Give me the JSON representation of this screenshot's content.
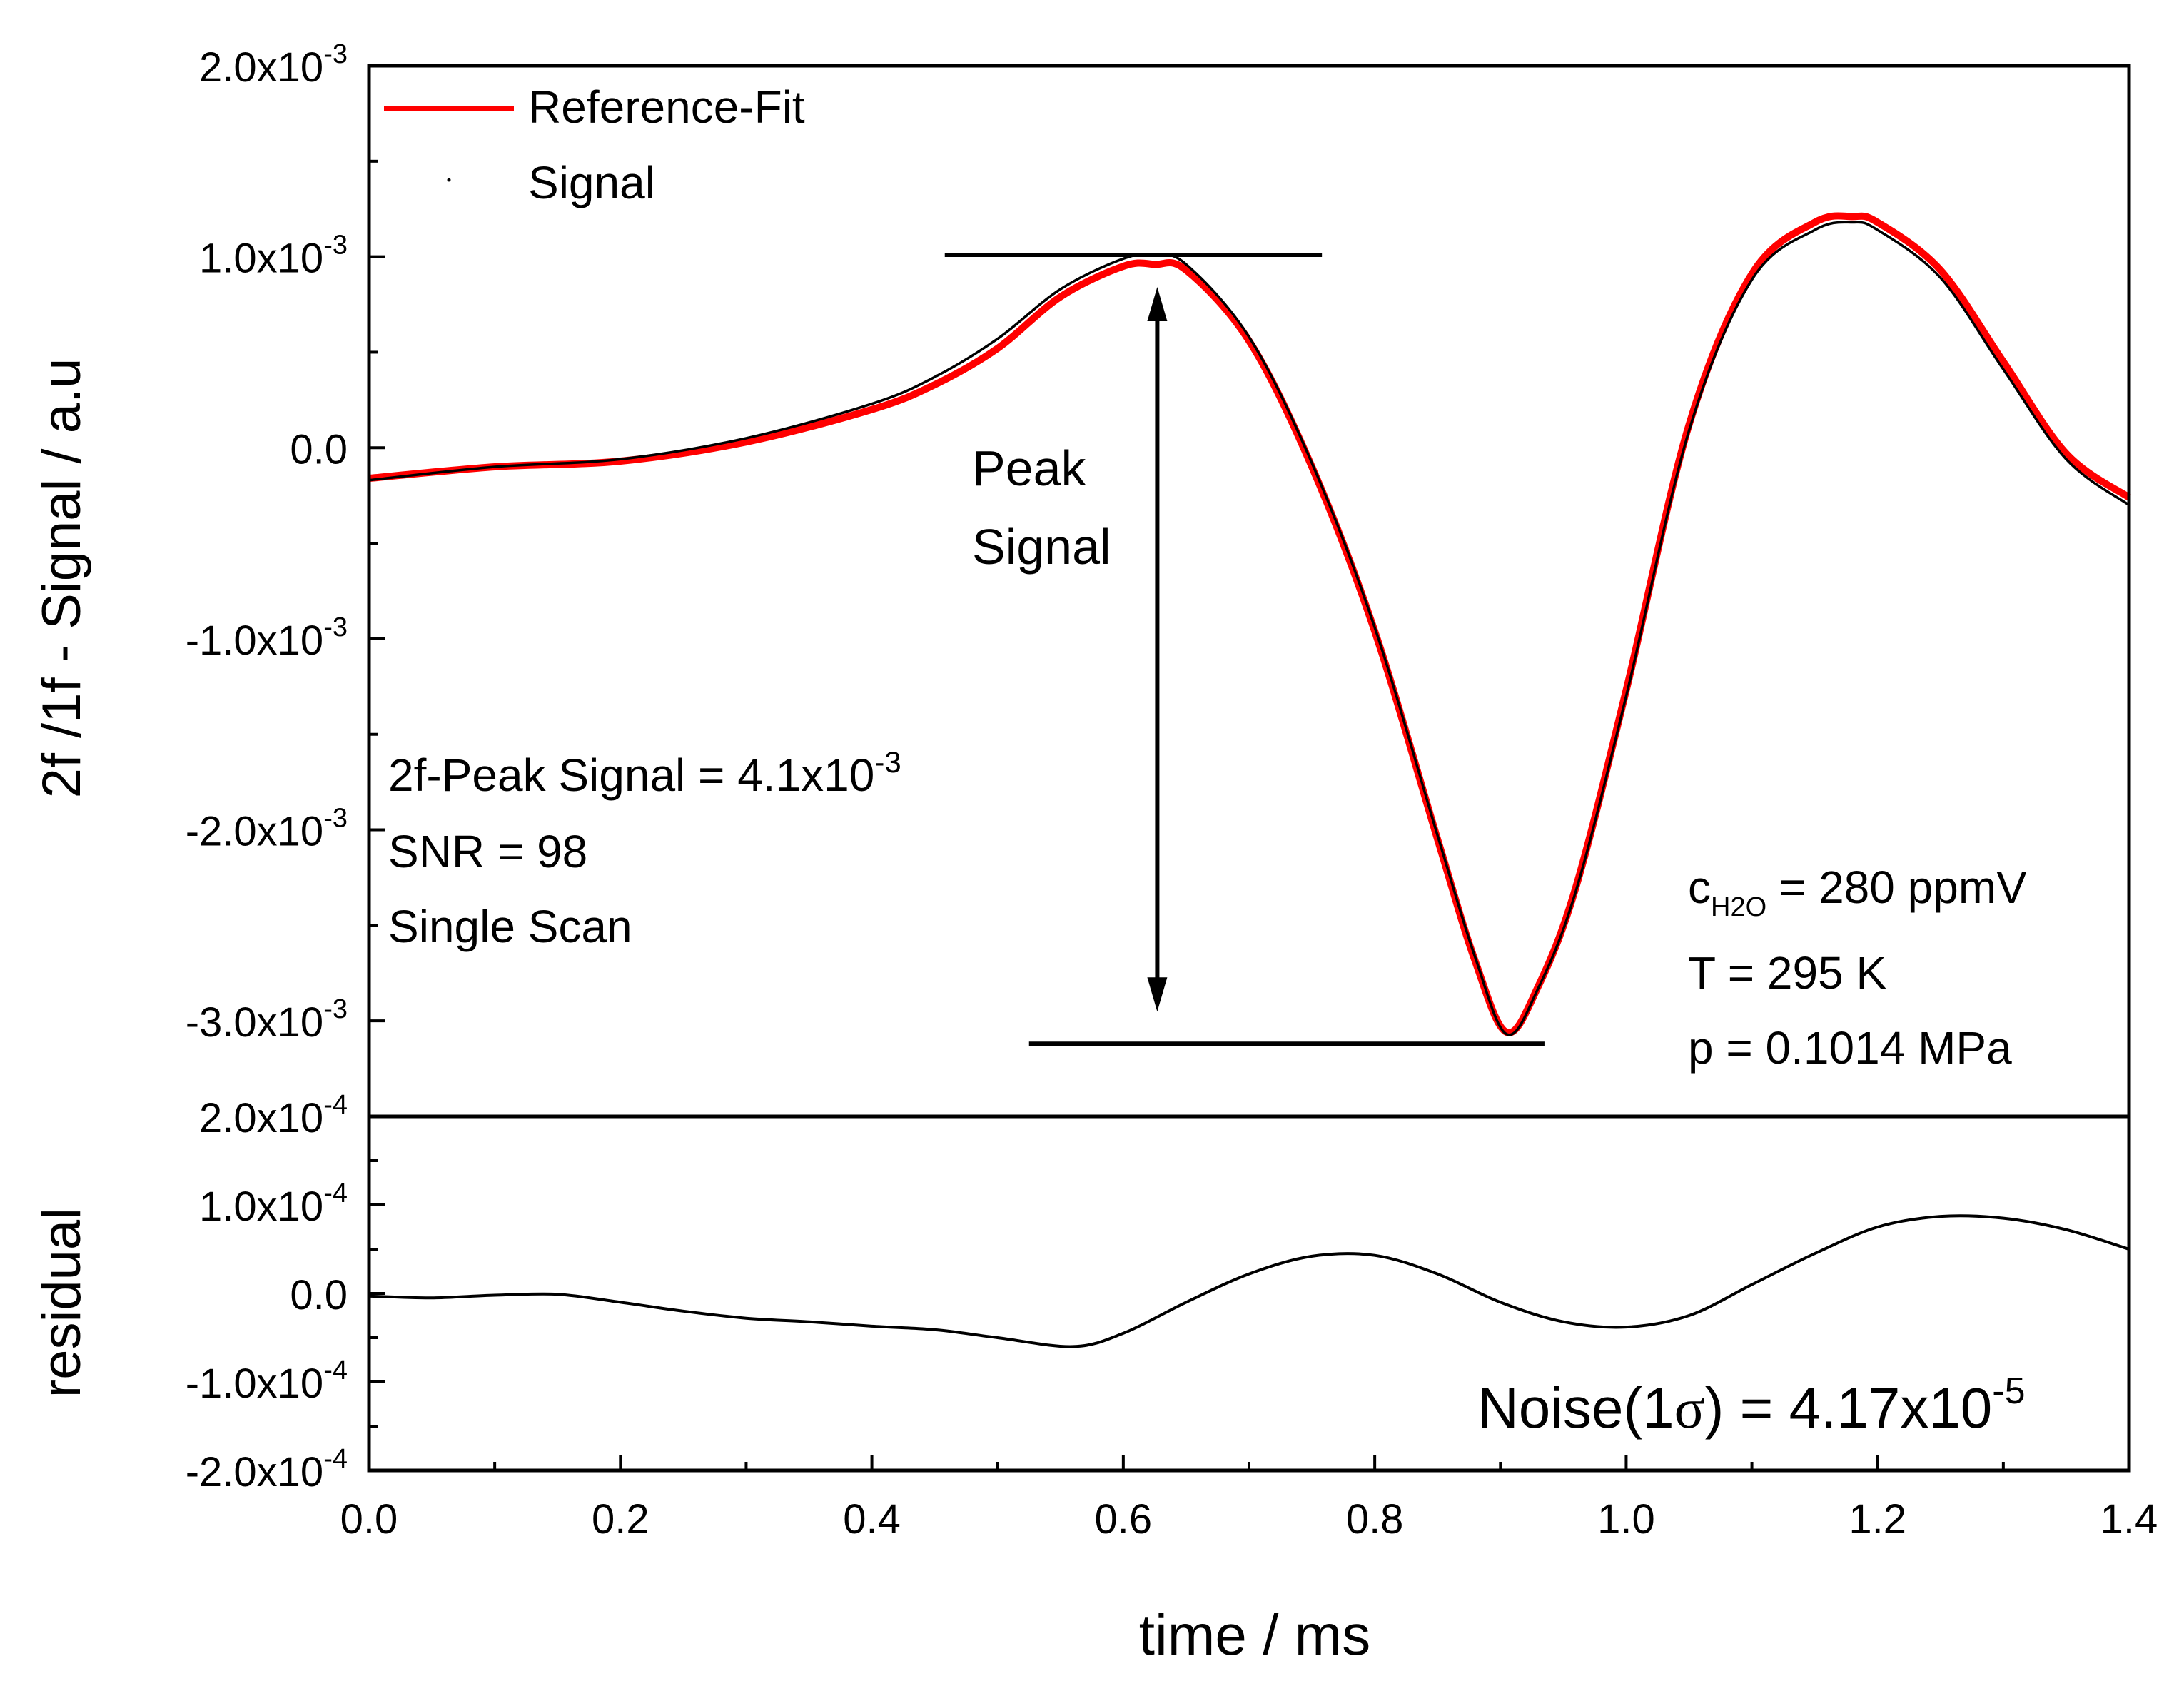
{
  "chart_data": [
    {
      "id": "main",
      "type": "line",
      "xlabel": "time / ms",
      "ylabel": "2f /1f - Signal / a.u",
      "xlim": [
        0,
        1.4
      ],
      "ylim": [
        -0.0035,
        0.002
      ],
      "yticks": [
        {
          "value": 0.002,
          "mant": "2.0x10",
          "exp": "-3"
        },
        {
          "value": 0.001,
          "mant": "1.0x10",
          "exp": "-3"
        },
        {
          "value": 0.0,
          "mant": "0.0",
          "exp": ""
        },
        {
          "value": -0.001,
          "mant": "-1.0x10",
          "exp": "-3"
        },
        {
          "value": -0.002,
          "mant": "-2.0x10",
          "exp": "-3"
        },
        {
          "value": -0.003,
          "mant": "-3.0x10",
          "exp": "-3"
        }
      ],
      "legend": [
        {
          "label": "Reference-Fit",
          "color": "#ff0000",
          "style": "line"
        },
        {
          "label": "Signal",
          "color": "#000000",
          "style": "dot"
        }
      ],
      "series": [
        {
          "name": "Signal",
          "color": "#000000",
          "x": [
            0.0,
            0.1,
            0.2,
            0.3,
            0.4,
            0.45,
            0.5,
            0.55,
            0.6,
            0.625,
            0.65,
            0.7,
            0.75,
            0.8,
            0.85,
            0.88,
            0.905,
            0.93,
            0.96,
            1.0,
            1.05,
            1.1,
            1.15,
            1.18,
            1.2,
            1.25,
            1.3,
            1.35,
            1.4
          ],
          "y": [
            -0.00017,
            -0.0001,
            -6e-05,
            5e-05,
            0.00023,
            0.00037,
            0.00057,
            0.00083,
            0.00099,
            0.00101,
            0.00096,
            0.00058,
            -8e-05,
            -0.00094,
            -0.00203,
            -0.00267,
            -0.00307,
            -0.00283,
            -0.00232,
            -0.0013,
            9e-05,
            0.00088,
            0.00114,
            0.00118,
            0.00114,
            0.00089,
            0.00041,
            -6e-05,
            -0.0003
          ]
        },
        {
          "name": "Reference-Fit",
          "color": "#ff0000",
          "x": [
            0.0,
            0.1,
            0.2,
            0.3,
            0.4,
            0.45,
            0.5,
            0.55,
            0.6,
            0.625,
            0.65,
            0.7,
            0.75,
            0.8,
            0.85,
            0.88,
            0.905,
            0.93,
            0.96,
            1.0,
            1.05,
            1.1,
            1.15,
            1.18,
            1.2,
            1.25,
            1.3,
            1.35,
            1.4
          ],
          "y": [
            -0.00016,
            -0.0001,
            -7e-05,
            3e-05,
            0.0002,
            0.00033,
            0.00052,
            0.00079,
            0.00095,
            0.00096,
            0.00093,
            0.00056,
            -0.0001,
            -0.00096,
            -0.00205,
            -0.00269,
            -0.00306,
            -0.00282,
            -0.0023,
            -0.00127,
            0.00012,
            0.00091,
            0.00118,
            0.00121,
            0.00118,
            0.00093,
            0.00045,
            -3e-05,
            -0.00026
          ]
        }
      ],
      "peak_markers": {
        "top_level": 0.00101,
        "top_x_range": [
          0.458,
          0.758
        ],
        "bottom_level": -0.00312,
        "bottom_x_range": [
          0.525,
          0.935
        ],
        "arrow_x": 0.627
      },
      "annotations": {
        "peak_label_1": "Peak",
        "peak_label_2": "Signal",
        "peak_signal_mant": "2f-Peak Signal = 4.1x10",
        "peak_signal_exp": "-3",
        "snr": "SNR = 98",
        "scan": "Single Scan",
        "conc_c": "c",
        "conc_sub": "H2O",
        "conc_rest": " = 280 ppmV",
        "temperature": "T = 295 K",
        "pressure": "p = 0.1014 MPa"
      }
    },
    {
      "id": "residual",
      "type": "line",
      "xlabel": "time / ms",
      "ylabel": "residual",
      "xlim": [
        0,
        1.4
      ],
      "ylim": [
        -0.0002,
        0.0002
      ],
      "xticks": [
        "0.0",
        "0.2",
        "0.4",
        "0.6",
        "0.8",
        "1.0",
        "1.2",
        "1.4"
      ],
      "xtick_values": [
        0,
        0.2,
        0.4,
        0.6,
        0.8,
        1.0,
        1.2,
        1.4
      ],
      "yticks": [
        {
          "value": 0.0002,
          "mant": "2.0x10",
          "exp": "-4"
        },
        {
          "value": 0.0001,
          "mant": "1.0x10",
          "exp": "-4"
        },
        {
          "value": 0.0,
          "mant": "0.0",
          "exp": ""
        },
        {
          "value": -0.0001,
          "mant": "-1.0x10",
          "exp": "-4"
        },
        {
          "value": -0.0002,
          "mant": "-2.0x10",
          "exp": "-4"
        }
      ],
      "series": [
        {
          "name": "residual",
          "color": "#000000",
          "x": [
            0.0,
            0.05,
            0.1,
            0.15,
            0.2,
            0.25,
            0.3,
            0.35,
            0.4,
            0.45,
            0.5,
            0.56,
            0.6,
            0.65,
            0.7,
            0.75,
            0.8,
            0.85,
            0.9,
            0.95,
            1.0,
            1.05,
            1.1,
            1.15,
            1.2,
            1.25,
            1.3,
            1.35,
            1.4
          ],
          "y": [
            -3e-06,
            -5e-06,
            -2e-06,
            -1e-06,
            -1e-05,
            -2e-05,
            -2.8e-05,
            -3.2e-05,
            -3.7e-05,
            -4.1e-05,
            -5e-05,
            -6e-05,
            -4.5e-05,
            -1e-05,
            2.2e-05,
            4.2e-05,
            4.3e-05,
            2.2e-05,
            -1e-05,
            -3.2e-05,
            -3.8e-05,
            -2.5e-05,
            1e-05,
            4.5e-05,
            7.5e-05,
            8.7e-05,
            8.5e-05,
            7.2e-05,
            5e-05
          ]
        }
      ],
      "annotations": {
        "noise_prefix": "Noise(1",
        "noise_sigma": "σ",
        "noise_mid": ") = 4.17x10",
        "noise_exp": "-5"
      }
    }
  ]
}
